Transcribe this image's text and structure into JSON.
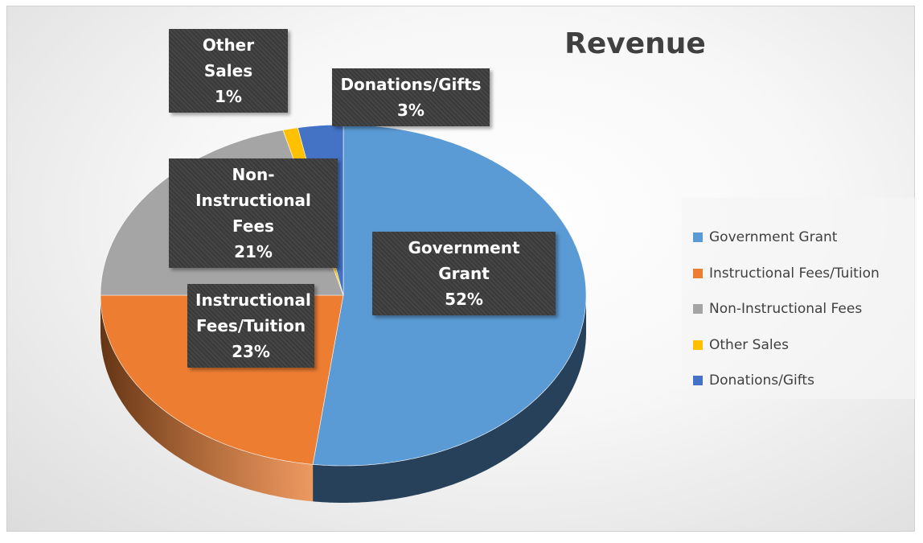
{
  "chart_data": {
    "type": "pie",
    "title": "Revenue",
    "categories": [
      "Government Grant",
      "Instructional Fees/Tuition",
      "Non-Instructional Fees",
      "Other Sales",
      "Donations/Gifts"
    ],
    "values": [
      52,
      23,
      21,
      1,
      3
    ],
    "value_labels": [
      "52%",
      "23%",
      "21%",
      "1%",
      "3%"
    ],
    "colors": [
      "#5B9BD5",
      "#ED7D31",
      "#A5A5A5",
      "#FFC000",
      "#4472C4"
    ],
    "legend": "right"
  }
}
